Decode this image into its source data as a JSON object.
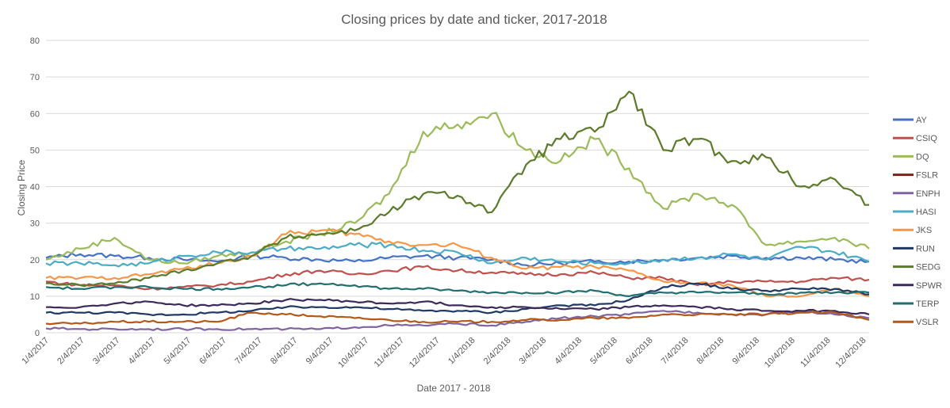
{
  "chart_data": {
    "type": "line",
    "title": "Closing prices by date and ticker, 2017-2018",
    "xlabel": "Date 2017 - 2018",
    "ylabel": "Closing Price",
    "ylim": [
      0,
      80
    ],
    "yticks": [
      0,
      10,
      20,
      30,
      40,
      50,
      60,
      70,
      80
    ],
    "xlim": [
      "1/4/2017",
      "12/31/2018"
    ],
    "x_tick_labels": [
      "1/4/2017",
      "2/4/2017",
      "3/4/2017",
      "4/4/2017",
      "5/4/2017",
      "6/4/2017",
      "7/4/2017",
      "8/4/2017",
      "9/4/2017",
      "10/4/2017",
      "11/4/2017",
      "12/4/2017",
      "1/4/2018",
      "2/4/2018",
      "3/4/2018",
      "4/4/2018",
      "5/4/2018",
      "6/4/2018",
      "7/4/2018",
      "8/4/2018",
      "9/4/2018",
      "10/4/2018",
      "11/4/2018",
      "12/4/2018"
    ],
    "x": [
      "1/4/2017",
      "2/4/2017",
      "3/4/2017",
      "4/4/2017",
      "5/4/2017",
      "6/4/2017",
      "7/4/2017",
      "8/4/2017",
      "9/4/2017",
      "10/4/2017",
      "11/4/2017",
      "12/4/2017",
      "1/4/2018",
      "2/4/2018",
      "3/4/2018",
      "4/4/2018",
      "5/4/2018",
      "6/4/2018",
      "7/4/2018",
      "8/4/2018",
      "9/4/2018",
      "10/4/2018",
      "11/4/2018",
      "12/4/2018",
      "12/31/2018"
    ],
    "grid": true,
    "legend": "right",
    "series": [
      {
        "name": "AY",
        "color": "#4472c4",
        "values": [
          20.5,
          21.5,
          21,
          20.5,
          20,
          19.5,
          21,
          20.5,
          20,
          19.5,
          20.5,
          21,
          20.5,
          20,
          18.5,
          19,
          19.5,
          19.5,
          20,
          20.5,
          21,
          20.5,
          20.5,
          20,
          19.5
        ]
      },
      {
        "name": "CSIQ",
        "color": "#c0504d",
        "values": [
          14,
          13,
          13,
          12,
          12.5,
          13,
          14,
          16,
          17,
          16,
          17,
          18,
          17,
          16.5,
          16,
          16,
          16.5,
          15,
          15,
          13,
          14,
          14,
          14,
          15,
          14.5
        ]
      },
      {
        "name": "DQ",
        "color": "#9bbb59",
        "values": [
          20,
          23,
          26,
          20,
          19,
          21,
          22,
          25,
          27,
          30,
          38,
          55,
          57,
          60,
          50,
          47,
          53,
          45,
          34,
          38,
          35,
          24,
          25,
          26,
          23
        ]
      },
      {
        "name": "FSLR",
        "color": "#7f1d1d",
        "values": [
          null,
          null,
          null,
          null,
          null,
          null,
          null,
          null,
          null,
          null,
          null,
          null,
          null,
          null,
          null,
          null,
          null,
          null,
          null,
          null,
          null,
          null,
          null,
          null,
          null
        ]
      },
      {
        "name": "ENPH",
        "color": "#8064a2",
        "values": [
          1.2,
          1,
          1,
          1,
          1,
          1,
          1,
          1,
          1,
          1.5,
          2,
          2,
          2.5,
          2,
          3,
          4,
          4.5,
          5,
          6,
          5.5,
          5,
          5,
          6,
          5,
          4
        ]
      },
      {
        "name": "HASI",
        "color": "#4bacc6",
        "values": [
          19,
          19,
          18.5,
          19,
          21,
          22,
          22,
          23,
          23,
          24,
          24,
          22.5,
          22,
          19,
          20.5,
          19.5,
          19,
          19,
          20,
          20.5,
          21.5,
          20,
          23.5,
          22,
          19.5
        ]
      },
      {
        "name": "JKS",
        "color": "#f79646",
        "values": [
          15,
          15,
          15,
          16,
          17.5,
          19,
          21,
          27,
          28,
          27,
          25,
          24,
          24,
          20.5,
          17.5,
          18,
          18,
          17,
          14,
          13.5,
          13,
          10,
          10,
          12,
          10
        ]
      },
      {
        "name": "RUN",
        "color": "#1f3864",
        "values": [
          5.5,
          5.5,
          5.5,
          5,
          5,
          5.5,
          6,
          7,
          7,
          7,
          6.5,
          6,
          6,
          5.5,
          6.5,
          7.5,
          7.5,
          9,
          12.5,
          13.5,
          12,
          11.5,
          12,
          12,
          10.5
        ]
      },
      {
        "name": "SEDG",
        "color": "#5b7b2a",
        "values": [
          13.5,
          13,
          13.5,
          15,
          17,
          19,
          21,
          26,
          27,
          28,
          33,
          38,
          37.5,
          33,
          46,
          53,
          55,
          66,
          50,
          53,
          47,
          48,
          40,
          42,
          35
        ]
      },
      {
        "name": "SPWR",
        "color": "#3c2a5a",
        "values": [
          7,
          7,
          8,
          8.5,
          7.5,
          7.5,
          8,
          9,
          9,
          8.5,
          8,
          8.5,
          7.5,
          7,
          7,
          6.5,
          6.5,
          7,
          7.5,
          7,
          6.5,
          6,
          6,
          6,
          5
        ]
      },
      {
        "name": "TERP",
        "color": "#1f6f6f",
        "values": [
          12.5,
          12,
          12.5,
          12.5,
          12,
          12,
          12.5,
          13,
          13.5,
          13,
          12,
          12,
          11.5,
          11,
          11,
          11,
          11.5,
          10,
          11,
          11,
          11,
          10.5,
          11,
          11,
          11
        ]
      },
      {
        "name": "VSLR",
        "color": "#b3591a",
        "values": [
          2.5,
          2.5,
          3,
          3,
          3,
          3,
          5.5,
          5,
          4.5,
          4,
          3.5,
          3,
          3,
          3,
          3.5,
          3.5,
          4,
          4,
          5,
          5,
          5,
          5,
          5.5,
          5.5,
          3.5
        ]
      }
    ]
  }
}
